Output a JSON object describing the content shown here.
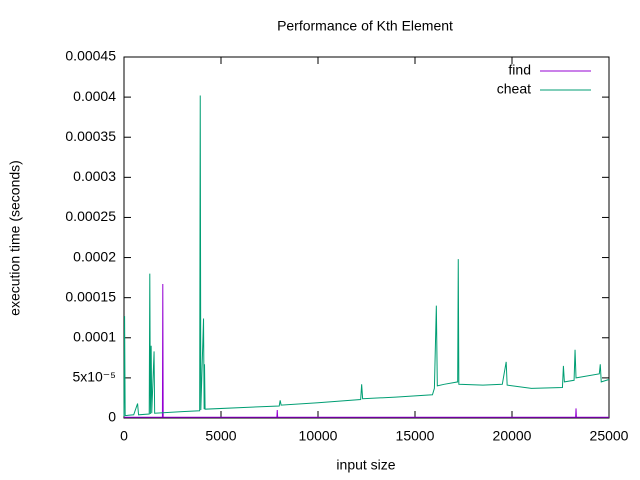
{
  "chart_data": {
    "type": "line",
    "title": "Performance of Kth Element",
    "x_label": "input size",
    "y_label": "execution time (seconds)",
    "xlim": [
      0,
      25000
    ],
    "xticks": [
      0,
      5000,
      10000,
      15000,
      20000,
      25000
    ],
    "ylim": [
      0,
      0.00045
    ],
    "yticks": [
      0,
      {
        "value": 5e-05,
        "label": "5x10⁻⁵"
      },
      0.0001,
      0.00015,
      0.0002,
      0.00025,
      0.0003,
      0.00035,
      0.0004,
      0.00045
    ],
    "legend": "top-right",
    "series": [
      {
        "name": "find",
        "color": "#9400d3",
        "x": [
          0,
          1980,
          2000,
          2020,
          7880,
          7900,
          7920,
          23280,
          23300,
          23320,
          25000
        ],
        "values": [
          1e-06,
          1e-06,
          0.000167,
          1e-06,
          1e-06,
          1e-05,
          1e-06,
          1e-06,
          1.2e-05,
          1e-06,
          1e-06
        ]
      },
      {
        "name": "cheat",
        "color": "#009e73",
        "x": [
          0,
          30,
          60,
          500,
          700,
          750,
          1300,
          1330,
          1360,
          1400,
          1430,
          1550,
          1580,
          3000,
          3900,
          3930,
          3960,
          4100,
          4130,
          4150,
          4180,
          8000,
          8050,
          8100,
          10000,
          12200,
          12250,
          12300,
          14000,
          15900,
          16000,
          16100,
          16150,
          16500,
          17200,
          17230,
          17260,
          18500,
          19500,
          19700,
          19750,
          21000,
          22600,
          22650,
          22700,
          23200,
          23250,
          23300,
          24500,
          24550,
          24600,
          25000
        ],
        "values": [
          2e-06,
          0.000127,
          3e-06,
          4e-06,
          1.8e-05,
          4e-06,
          5e-06,
          0.00018,
          5e-06,
          9e-05,
          6e-06,
          8.3e-05,
          6e-06,
          8e-06,
          9e-06,
          0.000402,
          1e-05,
          0.000124,
          1.1e-05,
          6.7e-05,
          1.1e-05,
          1.5e-05,
          2.2e-05,
          1.6e-05,
          1.9e-05,
          2.3e-05,
          4.2e-05,
          2.4e-05,
          2.6e-05,
          2.9e-05,
          3.7e-05,
          0.00014,
          4e-05,
          4.2e-05,
          4.5e-05,
          0.000198,
          4.2e-05,
          4.1e-05,
          4.2e-05,
          7e-05,
          4.1e-05,
          3.7e-05,
          3.8e-05,
          6.5e-05,
          4.5e-05,
          4.7e-05,
          8.5e-05,
          5e-05,
          5.5e-05,
          6.7e-05,
          4.5e-05,
          4.8e-05
        ]
      }
    ]
  }
}
